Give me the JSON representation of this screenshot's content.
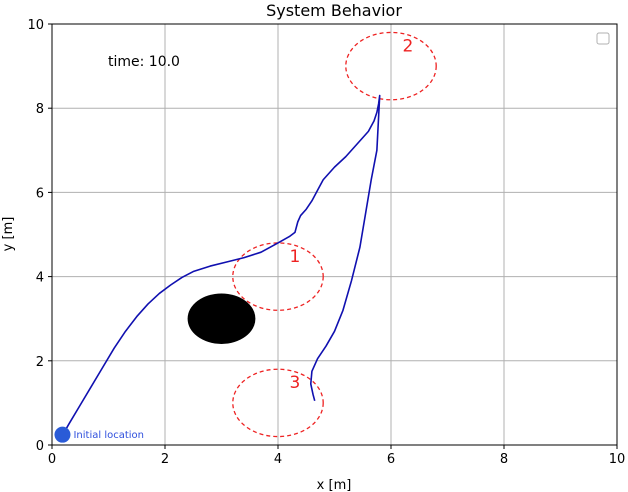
{
  "chart_data": {
    "type": "line",
    "title": "System Behavior",
    "xlabel": "x [m]",
    "ylabel": "y [m]",
    "xlim": [
      0,
      10
    ],
    "ylim": [
      0,
      10
    ],
    "xticks": [
      0,
      2,
      4,
      6,
      8,
      10
    ],
    "yticks": [
      0,
      2,
      4,
      6,
      8,
      10
    ],
    "grid": true,
    "legend_placement": "top-right",
    "time_text": "time: 10.0",
    "series": [
      {
        "color": "#1010b0",
        "x": [
          0.15,
          0.3,
          0.5,
          0.7,
          0.9,
          1.1,
          1.3,
          1.5,
          1.7,
          1.9,
          2.1,
          2.3,
          2.5,
          2.8,
          3.1,
          3.4,
          3.7,
          4.0,
          4.2,
          4.3,
          4.35,
          4.4,
          4.5,
          4.6,
          4.7,
          4.8,
          5.0,
          5.2,
          5.4,
          5.6,
          5.7,
          5.75,
          5.78,
          5.8,
          5.75,
          5.65,
          5.55,
          5.45,
          5.3,
          5.15,
          5.0,
          4.85,
          4.7,
          4.6,
          4.58,
          4.62,
          4.65
        ],
        "y": [
          0.15,
          0.5,
          0.95,
          1.4,
          1.85,
          2.3,
          2.7,
          3.05,
          3.35,
          3.6,
          3.8,
          3.98,
          4.12,
          4.25,
          4.35,
          4.45,
          4.58,
          4.8,
          4.95,
          5.05,
          5.3,
          5.45,
          5.6,
          5.8,
          6.05,
          6.3,
          6.6,
          6.85,
          7.15,
          7.45,
          7.7,
          7.9,
          8.1,
          8.3,
          7.0,
          6.3,
          5.5,
          4.7,
          3.9,
          3.2,
          2.7,
          2.35,
          2.05,
          1.75,
          1.45,
          1.2,
          1.05
        ]
      }
    ],
    "obstacle": {
      "center": [
        3.0,
        3.0
      ],
      "radius": 0.6,
      "color": "#000000"
    },
    "zones": [
      {
        "label": "1",
        "center": [
          4.0,
          4.0
        ],
        "radius": 0.8
      },
      {
        "label": "2",
        "center": [
          6.0,
          9.0
        ],
        "radius": 0.8
      },
      {
        "label": "3",
        "center": [
          4.0,
          1.0
        ],
        "radius": 0.8
      }
    ],
    "initial_marker": {
      "x": 0.15,
      "y": 0.15,
      "color": "#2a5bd7",
      "label": "Initial location"
    },
    "zone_color": "#ee2222"
  }
}
